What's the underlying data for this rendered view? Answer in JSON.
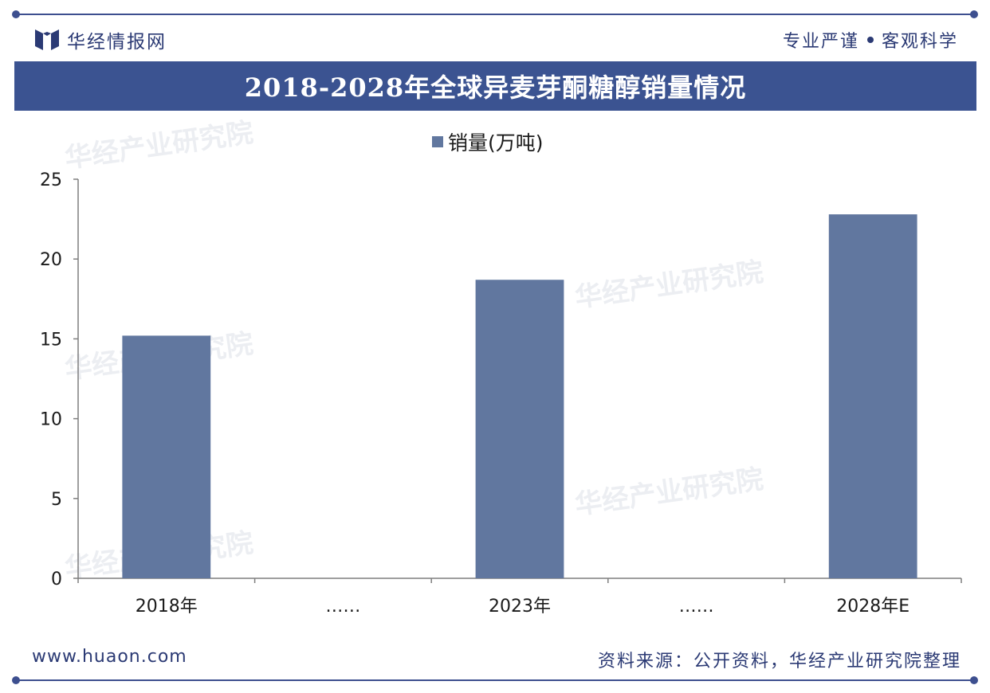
{
  "header": {
    "brand": "华经情报网",
    "slogan_left": "专业严谨",
    "slogan_right": "客观科学",
    "title": "2018-2028年全球异麦芽酮糖醇销量情况"
  },
  "watermark": {
    "cn": "华经产业研究院",
    "url": "www.huaon.com"
  },
  "footer": {
    "website": "www.huaon.com",
    "source": "资料来源：公开资料，华经产业研究院整理"
  },
  "colors": {
    "accent": "#3b5391",
    "bar": "#61779f",
    "rule": "#3d4f8f"
  },
  "chart_data": {
    "type": "bar",
    "title": "2018-2028年全球异麦芽酮糖醇销量情况",
    "categories": [
      "2018年",
      "……",
      "2023年",
      "……",
      "2028年E"
    ],
    "series": [
      {
        "name": "销量(万吨)",
        "values": [
          15.2,
          null,
          18.7,
          null,
          22.8
        ]
      }
    ],
    "ylim": [
      0,
      25
    ],
    "yticks": [
      0,
      5,
      10,
      15,
      20,
      25
    ],
    "grid": false,
    "legend": "top-center"
  }
}
